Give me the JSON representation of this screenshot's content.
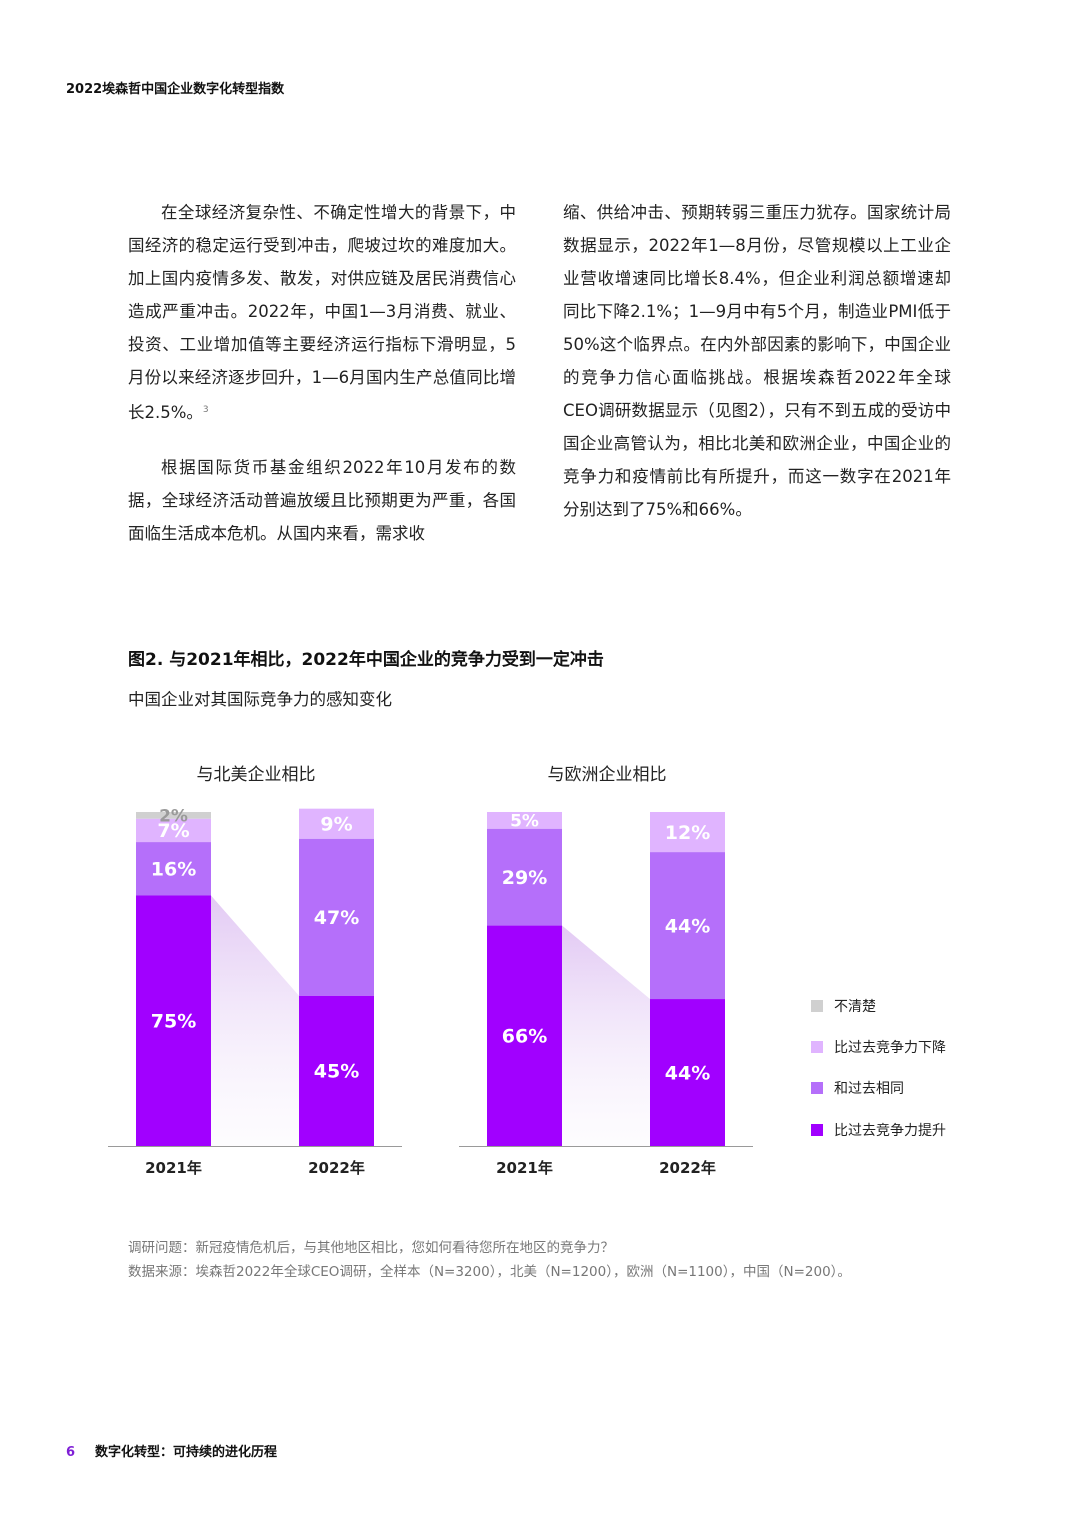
{
  "header": {
    "title": "2022埃森哲中国企业数字化转型指数"
  },
  "body": {
    "left": [
      "在全球经济复杂性、不确定性增大的背景下，中国经济的稳定运行受到冲击，爬坡过坎的难度加大。加上国内疫情多发、散发，对供应链及居民消费信心造成严重冲击。2022年，中国1—3月消费、就业、投资、工业增加值等主要经济运行指标下滑明显，5月份以来经济逐步回升，1—6月国内生产总值同比增长2.5%。",
      "根据国际货币基金组织2022年10月发布的数据，全球经济活动普遍放缓且比预期更为严重，各国面临生活成本危机。从国内来看，需求收"
    ],
    "footnote": "3",
    "right": "缩、供给冲击、预期转弱三重压力犹存。国家统计局数据显示，2022年1—8月份，尽管规模以上工业企业营收增速同比增长8.4%，但企业利润总额增速却同比下降2.1%；1—9月中有5个月，制造业PMI低于50%这个临界点。在内外部因素的影响下，中国企业的竞争力信心面临挑战。根据埃森哲2022年全球CEO调研数据显示（见图2），只有不到五成的受访中国企业高管认为，相比北美和欧洲企业，中国企业的竞争力和疫情前比有所提升，而这一数字在2021年分别达到了75%和66%。"
  },
  "figure": {
    "title": "图2. 与2021年相比，2022年中国企业的竞争力受到一定冲击",
    "subtitle": "中国企业对其国际竞争力的感知变化"
  },
  "chart_data": {
    "type": "bar",
    "stacked": true,
    "legend_position": "right",
    "legend": [
      {
        "key": "unclear",
        "name": "不清楚",
        "color": "#d0d0d0"
      },
      {
        "key": "decline",
        "name": "比过去竞争力下降",
        "color": "#e0b4ff"
      },
      {
        "key": "same",
        "name": "和过去相同",
        "color": "#b56ffa"
      },
      {
        "key": "improve",
        "name": "比过去竞争力提升",
        "color": "#a100ff"
      }
    ],
    "panels": [
      {
        "title": "与北美企业相比",
        "categories": [
          "2021年",
          "2022年"
        ],
        "series": [
          {
            "key": "improve",
            "values": [
              75,
              45
            ]
          },
          {
            "key": "same",
            "values": [
              16,
              47
            ]
          },
          {
            "key": "decline",
            "values": [
              7,
              9
            ]
          },
          {
            "key": "unclear",
            "values": [
              2,
              0
            ]
          }
        ]
      },
      {
        "title": "与欧洲企业相比",
        "categories": [
          "2021年",
          "2022年"
        ],
        "series": [
          {
            "key": "improve",
            "values": [
              66,
              44
            ]
          },
          {
            "key": "same",
            "values": [
              29,
              44
            ]
          },
          {
            "key": "decline",
            "values": [
              5,
              12
            ]
          },
          {
            "key": "unclear",
            "values": [
              0,
              0
            ]
          }
        ]
      }
    ]
  },
  "note": {
    "question": "调研问题：新冠疫情危机后，与其他地区相比，您如何看待您所在地区的竞争力？",
    "source": "数据来源：埃森哲2022年全球CEO调研，全样本（N=3200），北美（N=1200），欧洲（N=1100），中国（N=200）。"
  },
  "footer": {
    "page": "6",
    "title": "数字化转型：可持续的进化历程"
  }
}
